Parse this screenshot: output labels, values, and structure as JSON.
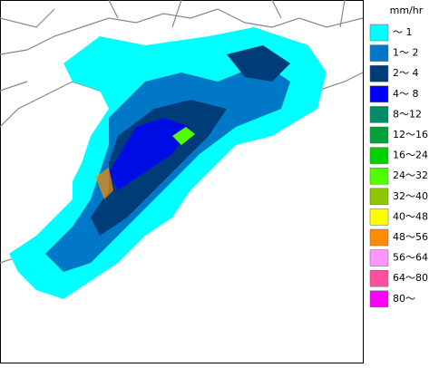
{
  "legend": {
    "title": "mm/hr",
    "items": [
      {
        "label": "～ 1",
        "color": "#00ffff"
      },
      {
        "label": "1～ 2",
        "color": "#0078c8"
      },
      {
        "label": "2～ 4",
        "color": "#003c78"
      },
      {
        "label": "4～ 8",
        "color": "#0000ff"
      },
      {
        "label": "8～12",
        "color": "#008c64"
      },
      {
        "label": "12～16",
        "color": "#00a03c"
      },
      {
        "label": "16～24",
        "color": "#00d200"
      },
      {
        "label": "24～32",
        "color": "#50ff00"
      },
      {
        "label": "32～40",
        "color": "#8cc800"
      },
      {
        "label": "40～48",
        "color": "#ffff00"
      },
      {
        "label": "48～56",
        "color": "#ff8c00"
      },
      {
        "label": "56～64",
        "color": "#ff96ff"
      },
      {
        "label": "64～80",
        "color": "#ff50a0"
      },
      {
        "label": "80～",
        "color": "#ff00ff"
      }
    ]
  }
}
